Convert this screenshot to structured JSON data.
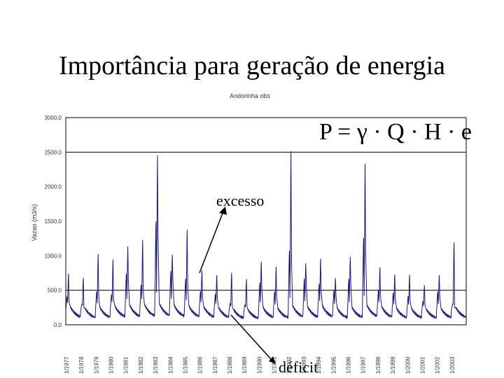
{
  "slide": {
    "title": "Importância para geração de energia",
    "formula": "P = γ · Q · H · e",
    "annotation_excess": "excesso",
    "annotation_deficit": "déficit"
  },
  "chart_data": {
    "type": "line",
    "title": "Andorinha obs",
    "ylabel": "Vazao (m3/s)",
    "xlabel": "",
    "ylim": [
      0,
      3000
    ],
    "yticks": [
      "0.0",
      "500.0",
      "1000.0",
      "1500.0",
      "2000.0",
      "2500.0",
      "3000.0"
    ],
    "xtick_labels": [
      "1/1977",
      "1/1978",
      "1/1979",
      "1/1980",
      "1/1981",
      "1/1982",
      "1/1983",
      "1/1984",
      "1/1985",
      "1/1986",
      "1/1987",
      "1/1988",
      "1/1989",
      "1/1990",
      "1/1991",
      "1/1992",
      "1/1993",
      "1/1994",
      "1/1995",
      "1/1996",
      "1/1997",
      "1/1998",
      "1/1999",
      "1/2000",
      "1/2001",
      "1/2002",
      "1/2003"
    ],
    "reference_lines": [
      500,
      2500
    ],
    "series_color": "#1a1a7a",
    "series": [
      {
        "annual_peaks": [
          780,
          720,
          1080,
          1000,
          1180,
          1300,
          2560,
          1050,
          1450,
          820,
          750,
          800,
          700,
          950,
          880,
          2660,
          920,
          1000,
          700,
          1020,
          2450,
          870,
          760,
          760,
          600,
          750,
          1280
        ],
        "secondary_peaks": [
          420,
          300,
          500,
          450,
          780,
          600,
          1600,
          820,
          700,
          500,
          460,
          320,
          300,
          640,
          500,
          1140,
          700,
          620,
          520,
          700,
          1340,
          520,
          480,
          430,
          350,
          500,
          300
        ],
        "base_flow": [
          220,
          200,
          210,
          230,
          240,
          250,
          260,
          240,
          230,
          220,
          210,
          190,
          180,
          210,
          200,
          230,
          220,
          230,
          200,
          210,
          240,
          220,
          200,
          200,
          190,
          200,
          210
        ]
      }
    ]
  }
}
